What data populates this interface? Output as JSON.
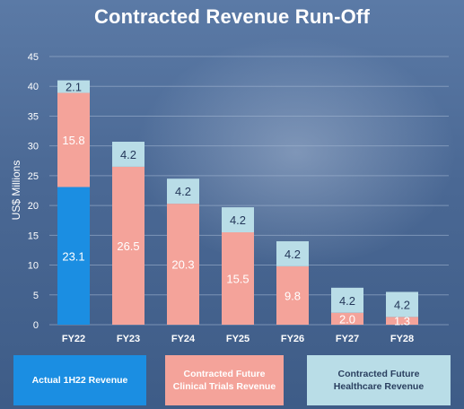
{
  "chart_data": {
    "type": "bar",
    "stacked": true,
    "title": "Contracted Revenue Run-Off",
    "ylabel": "US$ Millions",
    "xlabel": "",
    "ylim": [
      0,
      45
    ],
    "yticks": [
      0,
      5,
      10,
      15,
      20,
      25,
      30,
      35,
      40,
      45
    ],
    "categories": [
      "FY22",
      "FY23",
      "FY24",
      "FY25",
      "FY26",
      "FY27",
      "FY28"
    ],
    "grid": true,
    "legend_position": "bottom",
    "series": [
      {
        "name": "Actual 1H22 Revenue",
        "color": "#1b8ee2",
        "label_color": "#ffffff",
        "values": [
          23.1,
          0,
          0,
          0,
          0,
          0,
          0
        ],
        "labels": [
          "23.1",
          "",
          "",
          "",
          "",
          "",
          ""
        ]
      },
      {
        "name": "Contracted Future Clinical Trials Revenue",
        "color": "#f4a39a",
        "label_color": "#ffffff",
        "values": [
          15.8,
          26.5,
          20.3,
          15.5,
          9.8,
          2.0,
          1.3
        ],
        "labels": [
          "15.8",
          "26.5",
          "20.3",
          "15.5",
          "9.8",
          "2.0",
          "1.3"
        ]
      },
      {
        "name": "Contracted Future Healthcare Revenue",
        "color": "#b9dde7",
        "label_color": "#24385a",
        "values": [
          2.1,
          4.2,
          4.2,
          4.2,
          4.2,
          4.2,
          4.2
        ],
        "labels": [
          "2.1",
          "4.2",
          "4.2",
          "4.2",
          "4.2",
          "4.2",
          "4.2"
        ]
      }
    ]
  },
  "legend": {
    "actual": "Actual 1H22 Revenue",
    "clinical_line1": "Contracted Future",
    "clinical_line2": "Clinical Trials Revenue",
    "health_line1": "Contracted Future",
    "health_line2": "Healthcare Revenue"
  },
  "colors": {
    "grid": "#9fb3cf",
    "axis_text": "#ffffff"
  }
}
